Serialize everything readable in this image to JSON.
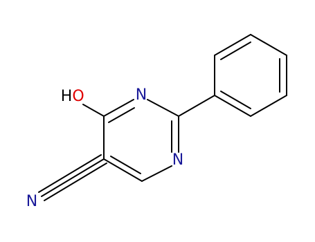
{
  "atoms": [
    {
      "label": "H"
    },
    {
      "label": "O"
    },
    {
      "label": "N"
    },
    {
      "label": "N"
    },
    {
      "label": "N"
    }
  ]
}
